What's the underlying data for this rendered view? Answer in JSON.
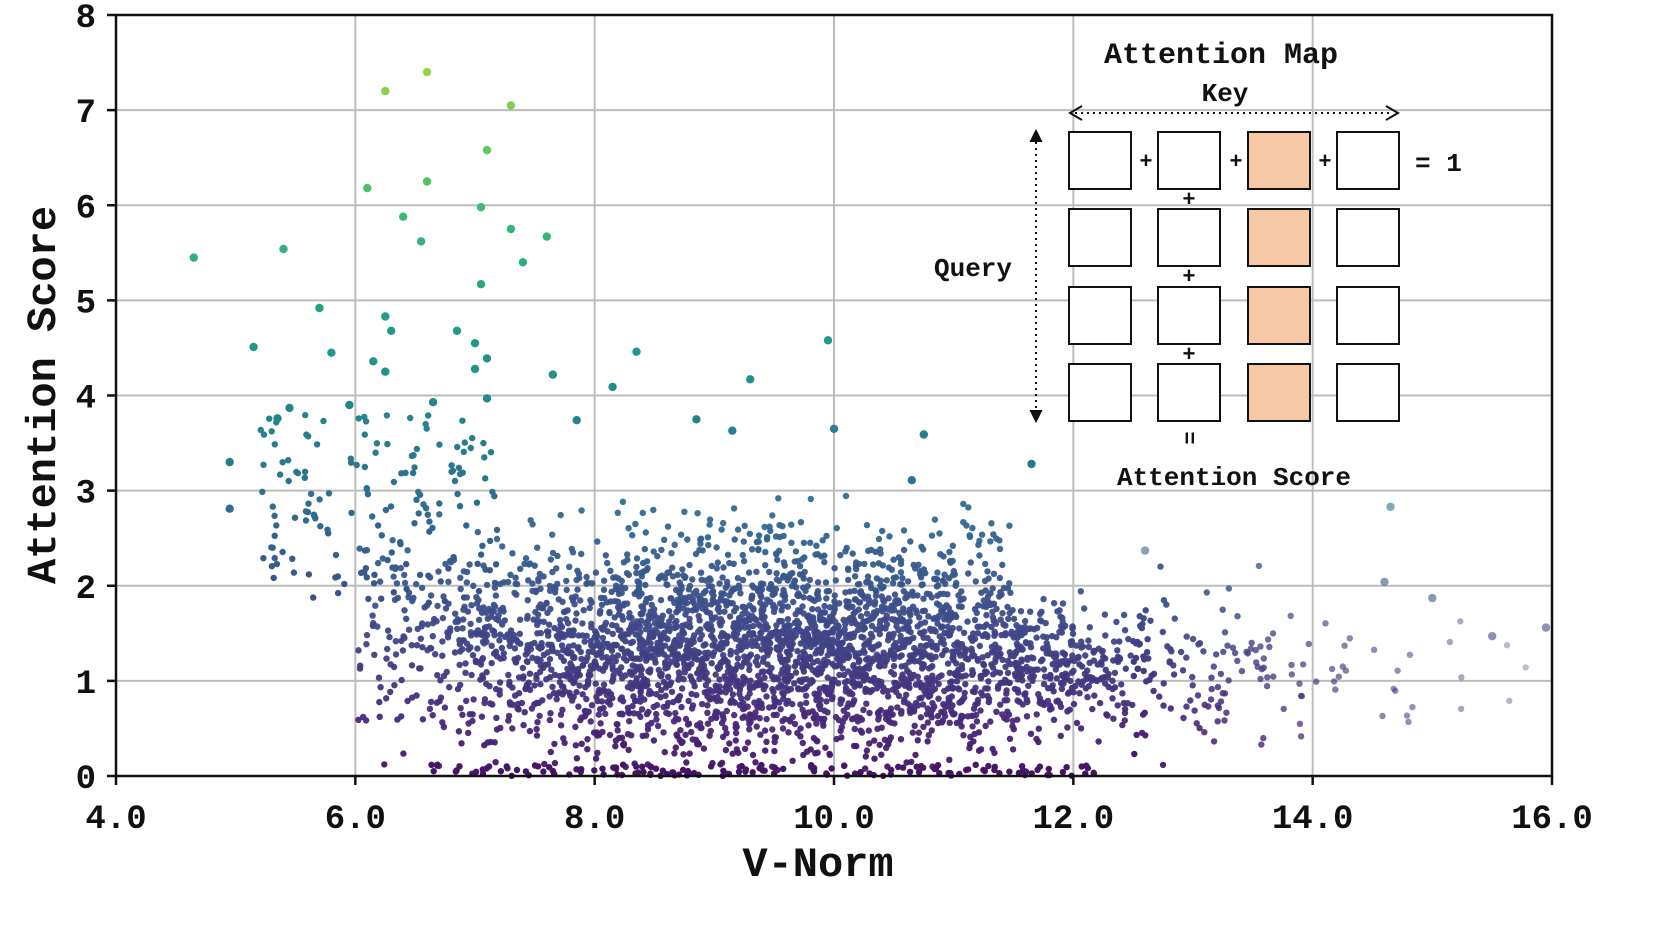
{
  "chart_data": {
    "type": "scatter",
    "title": "",
    "xlabel": "V-Norm",
    "ylabel": "Attention Score",
    "xlim": [
      4.0,
      16.0
    ],
    "ylim": [
      0,
      8
    ],
    "x_ticks": [
      "4.0",
      "6.0",
      "8.0",
      "10.0",
      "12.0",
      "14.0",
      "16.0"
    ],
    "y_ticks": [
      "0",
      "1",
      "2",
      "3",
      "4",
      "5",
      "6",
      "7",
      "8"
    ],
    "grid": true,
    "colormap": "viridis (by attention score)",
    "highlighted_points": [
      {
        "x": 6.6,
        "y": 7.4
      },
      {
        "x": 6.25,
        "y": 7.2
      },
      {
        "x": 7.3,
        "y": 7.05
      },
      {
        "x": 7.1,
        "y": 6.58
      },
      {
        "x": 6.6,
        "y": 6.25
      },
      {
        "x": 6.1,
        "y": 6.18
      },
      {
        "x": 7.05,
        "y": 5.98
      },
      {
        "x": 6.4,
        "y": 5.88
      },
      {
        "x": 7.3,
        "y": 5.75
      },
      {
        "x": 7.6,
        "y": 5.67
      },
      {
        "x": 6.55,
        "y": 5.62
      },
      {
        "x": 5.4,
        "y": 5.54
      },
      {
        "x": 4.65,
        "y": 5.45
      },
      {
        "x": 7.4,
        "y": 5.4
      },
      {
        "x": 7.05,
        "y": 5.17
      },
      {
        "x": 5.7,
        "y": 4.92
      },
      {
        "x": 6.25,
        "y": 4.83
      },
      {
        "x": 6.3,
        "y": 4.68
      },
      {
        "x": 6.85,
        "y": 4.68
      },
      {
        "x": 7.0,
        "y": 4.55
      },
      {
        "x": 9.95,
        "y": 4.58
      },
      {
        "x": 5.15,
        "y": 4.51
      },
      {
        "x": 8.35,
        "y": 4.46
      },
      {
        "x": 5.8,
        "y": 4.45
      },
      {
        "x": 7.1,
        "y": 4.39
      },
      {
        "x": 6.15,
        "y": 4.36
      },
      {
        "x": 7.0,
        "y": 4.28
      },
      {
        "x": 6.25,
        "y": 4.25
      },
      {
        "x": 7.65,
        "y": 4.22
      },
      {
        "x": 9.3,
        "y": 4.17
      },
      {
        "x": 8.15,
        "y": 4.09
      },
      {
        "x": 6.65,
        "y": 3.93
      },
      {
        "x": 7.1,
        "y": 3.97
      },
      {
        "x": 5.95,
        "y": 3.9
      },
      {
        "x": 5.45,
        "y": 3.87
      },
      {
        "x": 5.35,
        "y": 3.76
      },
      {
        "x": 8.85,
        "y": 3.75
      },
      {
        "x": 7.85,
        "y": 3.74
      },
      {
        "x": 9.15,
        "y": 3.63
      },
      {
        "x": 10.0,
        "y": 3.65
      },
      {
        "x": 10.75,
        "y": 3.59
      },
      {
        "x": 11.65,
        "y": 3.28
      },
      {
        "x": 10.65,
        "y": 3.11
      },
      {
        "x": 4.95,
        "y": 3.3
      },
      {
        "x": 4.95,
        "y": 2.81
      },
      {
        "x": 14.65,
        "y": 2.83
      },
      {
        "x": 14.6,
        "y": 2.04
      },
      {
        "x": 12.6,
        "y": 2.37
      },
      {
        "x": 15.0,
        "y": 1.87
      },
      {
        "x": 15.5,
        "y": 1.47
      },
      {
        "x": 15.95,
        "y": 1.56
      }
    ],
    "bulk_cloud": {
      "count": 3600,
      "x_center": 9.5,
      "x_spread": 1.6,
      "x_range": [
        6.0,
        16.0
      ],
      "y_center": 1.35,
      "y_spread": 0.55,
      "y_range": [
        0,
        3.0
      ],
      "zero_band_x_range": [
        6.6,
        12.2
      ]
    },
    "inset": {
      "title": "Attention Map",
      "key_label": "Key",
      "query_label": "Query",
      "score_label": "Attention Score",
      "equals_one": "= 1",
      "plus": "+",
      "equals": "=",
      "grid": "4x4",
      "highlighted_column": 2,
      "highlight_color": "#f6c8a6"
    }
  }
}
